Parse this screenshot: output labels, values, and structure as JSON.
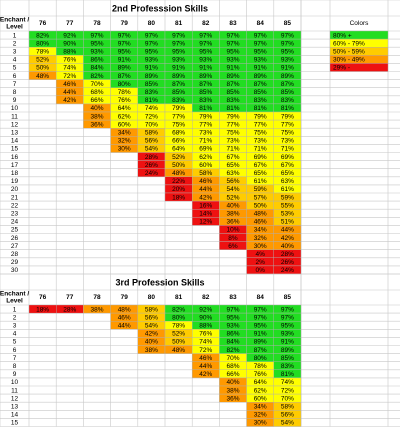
{
  "tables": [
    {
      "title": "2nd Professsion Skills",
      "corner_label": [
        "Enchant /",
        "Level"
      ],
      "columns": [
        76,
        77,
        78,
        79,
        80,
        81,
        82,
        83,
        84,
        85
      ],
      "rows": [
        {
          "label": 1,
          "cells": [
            "82%",
            "92%",
            "97%",
            "97%",
            "97%",
            "97%",
            "97%",
            "97%",
            "97%",
            "97%"
          ]
        },
        {
          "label": 2,
          "cells": [
            "80%",
            "90%",
            "95%",
            "97%",
            "97%",
            "97%",
            "97%",
            "97%",
            "97%",
            "97%"
          ]
        },
        {
          "label": 3,
          "cells": [
            "78%",
            "88%",
            "93%",
            "95%",
            "95%",
            "95%",
            "95%",
            "95%",
            "95%",
            "95%"
          ]
        },
        {
          "label": 4,
          "cells": [
            "52%",
            "76%",
            "86%",
            "91%",
            "93%",
            "93%",
            "93%",
            "93%",
            "93%",
            "93%"
          ]
        },
        {
          "label": 5,
          "cells": [
            "50%",
            "74%",
            "84%",
            "89%",
            "91%",
            "91%",
            "91%",
            "91%",
            "91%",
            "91%"
          ]
        },
        {
          "label": 6,
          "cells": [
            "48%",
            "72%",
            "82%",
            "87%",
            "89%",
            "89%",
            "89%",
            "89%",
            "89%",
            "89%"
          ]
        },
        {
          "label": 7,
          "cells": [
            null,
            "46%",
            "70%",
            "80%",
            "85%",
            "87%",
            "87%",
            "87%",
            "87%",
            "87%"
          ]
        },
        {
          "label": 8,
          "cells": [
            null,
            "44%",
            "68%",
            "78%",
            "83%",
            "85%",
            "85%",
            "85%",
            "85%",
            "85%"
          ]
        },
        {
          "label": 9,
          "cells": [
            null,
            "42%",
            "66%",
            "76%",
            "81%",
            "83%",
            "83%",
            "83%",
            "83%",
            "83%"
          ]
        },
        {
          "label": 10,
          "cells": [
            null,
            null,
            "40%",
            "64%",
            "74%",
            "79%",
            "81%",
            "81%",
            "81%",
            "81%"
          ]
        },
        {
          "label": 11,
          "cells": [
            null,
            null,
            "38%",
            "62%",
            "72%",
            "77%",
            "79%",
            "79%",
            "79%",
            "79%"
          ]
        },
        {
          "label": 12,
          "cells": [
            null,
            null,
            "36%",
            "60%",
            "70%",
            "75%",
            "77%",
            "77%",
            "77%",
            "77%"
          ]
        },
        {
          "label": 13,
          "cells": [
            null,
            null,
            null,
            "34%",
            "58%",
            "68%",
            "73%",
            "75%",
            "75%",
            "75%"
          ]
        },
        {
          "label": 14,
          "cells": [
            null,
            null,
            null,
            "32%",
            "56%",
            "66%",
            "71%",
            "73%",
            "73%",
            "73%"
          ]
        },
        {
          "label": 15,
          "cells": [
            null,
            null,
            null,
            "30%",
            "54%",
            "64%",
            "69%",
            "71%",
            "71%",
            "71%"
          ]
        },
        {
          "label": 16,
          "cells": [
            null,
            null,
            null,
            null,
            "28%",
            "52%",
            "62%",
            "67%",
            "69%",
            "69%"
          ]
        },
        {
          "label": 17,
          "cells": [
            null,
            null,
            null,
            null,
            "26%",
            "50%",
            "60%",
            "65%",
            "67%",
            "67%"
          ]
        },
        {
          "label": 18,
          "cells": [
            null,
            null,
            null,
            null,
            "24%",
            "48%",
            "58%",
            "63%",
            "65%",
            "65%"
          ]
        },
        {
          "label": 19,
          "cells": [
            null,
            null,
            null,
            null,
            null,
            "22%",
            "46%",
            "56%",
            "61%",
            "63%"
          ]
        },
        {
          "label": 20,
          "cells": [
            null,
            null,
            null,
            null,
            null,
            "20%",
            "44%",
            "54%",
            "59%",
            "61%"
          ]
        },
        {
          "label": 21,
          "cells": [
            null,
            null,
            null,
            null,
            null,
            "18%",
            "42%",
            "52%",
            "57%",
            "59%"
          ]
        },
        {
          "label": 22,
          "cells": [
            null,
            null,
            null,
            null,
            null,
            null,
            "16%",
            "40%",
            "50%",
            "55%"
          ]
        },
        {
          "label": 23,
          "cells": [
            null,
            null,
            null,
            null,
            null,
            null,
            "14%",
            "38%",
            "48%",
            "53%"
          ]
        },
        {
          "label": 24,
          "cells": [
            null,
            null,
            null,
            null,
            null,
            null,
            "12%",
            "36%",
            "46%",
            "51%"
          ]
        },
        {
          "label": 25,
          "cells": [
            null,
            null,
            null,
            null,
            null,
            null,
            null,
            "10%",
            "34%",
            "44%"
          ]
        },
        {
          "label": 26,
          "cells": [
            null,
            null,
            null,
            null,
            null,
            null,
            null,
            "8%",
            "32%",
            "42%"
          ]
        },
        {
          "label": 27,
          "cells": [
            null,
            null,
            null,
            null,
            null,
            null,
            null,
            "6%",
            "30%",
            "40%"
          ]
        },
        {
          "label": 28,
          "cells": [
            null,
            null,
            null,
            null,
            null,
            null,
            null,
            null,
            "4%",
            "28%"
          ]
        },
        {
          "label": 29,
          "cells": [
            null,
            null,
            null,
            null,
            null,
            null,
            null,
            null,
            "2%",
            "26%"
          ]
        },
        {
          "label": 30,
          "cells": [
            null,
            null,
            null,
            null,
            null,
            null,
            null,
            null,
            "0%",
            "24%"
          ]
        }
      ]
    },
    {
      "title": "3rd Profession Skills",
      "corner_label": [
        "Enchant /",
        "Level"
      ],
      "columns": [
        76,
        77,
        78,
        79,
        80,
        81,
        82,
        83,
        84,
        85
      ],
      "rows": [
        {
          "label": 1,
          "cells": [
            "18%",
            "28%",
            "38%",
            "48%",
            "58%",
            "82%",
            "92%",
            "97%",
            "97%",
            "97%"
          ]
        },
        {
          "label": 2,
          "cells": [
            null,
            null,
            null,
            "46%",
            "56%",
            "80%",
            "90%",
            "95%",
            "97%",
            "97%"
          ]
        },
        {
          "label": 3,
          "cells": [
            null,
            null,
            null,
            "44%",
            "54%",
            "78%",
            "88%",
            "93%",
            "95%",
            "95%"
          ]
        },
        {
          "label": 4,
          "cells": [
            null,
            null,
            null,
            null,
            "42%",
            "52%",
            "76%",
            "86%",
            "91%",
            "93%"
          ]
        },
        {
          "label": 5,
          "cells": [
            null,
            null,
            null,
            null,
            "40%",
            "50%",
            "74%",
            "84%",
            "89%",
            "91%"
          ]
        },
        {
          "label": 6,
          "cells": [
            null,
            null,
            null,
            null,
            "38%",
            "48%",
            "72%",
            "82%",
            "87%",
            "89%"
          ]
        },
        {
          "label": 7,
          "cells": [
            null,
            null,
            null,
            null,
            null,
            null,
            "46%",
            "70%",
            "80%",
            "85%"
          ]
        },
        {
          "label": 8,
          "cells": [
            null,
            null,
            null,
            null,
            null,
            null,
            "44%",
            "68%",
            "78%",
            "83%"
          ]
        },
        {
          "label": 9,
          "cells": [
            null,
            null,
            null,
            null,
            null,
            null,
            "42%",
            "66%",
            "76%",
            "81%"
          ]
        },
        {
          "label": 10,
          "cells": [
            null,
            null,
            null,
            null,
            null,
            null,
            null,
            "40%",
            "64%",
            "74%"
          ]
        },
        {
          "label": 11,
          "cells": [
            null,
            null,
            null,
            null,
            null,
            null,
            null,
            "38%",
            "62%",
            "72%"
          ]
        },
        {
          "label": 12,
          "cells": [
            null,
            null,
            null,
            null,
            null,
            null,
            null,
            "36%",
            "60%",
            "70%"
          ]
        },
        {
          "label": 13,
          "cells": [
            null,
            null,
            null,
            null,
            null,
            null,
            null,
            null,
            "34%",
            "58%"
          ]
        },
        {
          "label": 14,
          "cells": [
            null,
            null,
            null,
            null,
            null,
            null,
            null,
            null,
            "32%",
            "56%"
          ]
        },
        {
          "label": 15,
          "cells": [
            null,
            null,
            null,
            null,
            null,
            null,
            null,
            null,
            "30%",
            "54%"
          ]
        }
      ]
    }
  ],
  "legend": {
    "title": "Colors",
    "items": [
      {
        "label": "80% +",
        "color": "#22dd22",
        "min": 80
      },
      {
        "label": "60% - 79%",
        "color": "#ffff00",
        "min": 60
      },
      {
        "label": "50% - 59%",
        "color": "#ffcc00",
        "min": 50
      },
      {
        "label": "30% - 49%",
        "color": "#ff9900",
        "min": 30
      },
      {
        "label": "29% -",
        "color": "#ee1111"
      }
    ]
  }
}
